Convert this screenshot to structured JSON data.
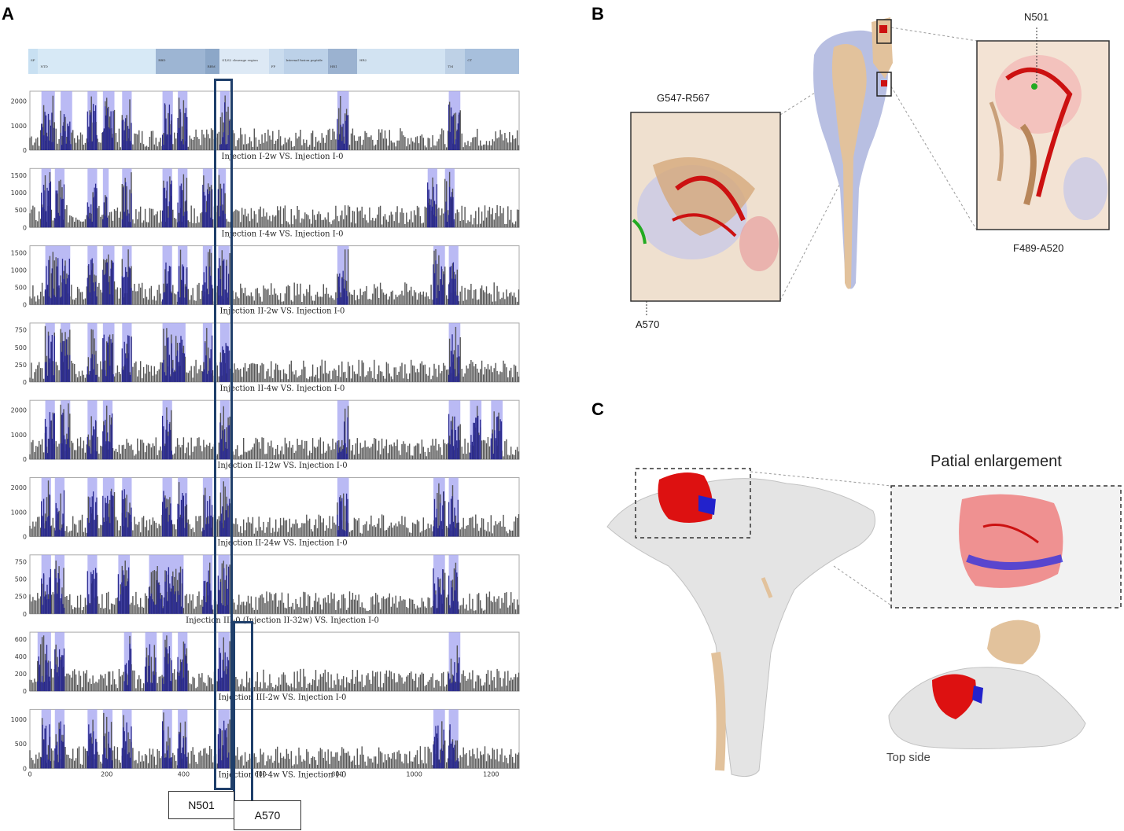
{
  "panels": {
    "a": "A",
    "b": "B",
    "c": "C"
  },
  "panel_a": {
    "domain_bar": {
      "segments": [
        {
          "label": "SP",
          "color": "#c8e0f2"
        },
        {
          "label": "NTD",
          "color": "#d7e9f6"
        },
        {
          "label": "RBD",
          "color": "#9db5d3"
        },
        {
          "label": "RBM",
          "color": "#8ca7c8"
        },
        {
          "label": "S1/S2 cleavage region",
          "color": "#dde9f5"
        },
        {
          "label": "FP",
          "color": "#cadcee"
        },
        {
          "label": "Internal fusion peptide",
          "color": "#bcd1e8"
        },
        {
          "label": "HR1",
          "color": "#9bb2d0"
        },
        {
          "label": "HR2",
          "color": "#d2e3f2"
        },
        {
          "label": "TM",
          "color": "#bed1e6"
        },
        {
          "label": "CT",
          "color": "#a7bfdc"
        }
      ]
    },
    "tracks": [
      {
        "title": "Injection I-2w VS. Injection I-0",
        "yticks": [
          "0",
          "1000",
          "2000"
        ]
      },
      {
        "title": "Injection I-4w VS. Injection I-0",
        "yticks": [
          "0",
          "500",
          "1000",
          "1500"
        ]
      },
      {
        "title": "Injection II-2w VS. Injection I-0",
        "yticks": [
          "0",
          "500",
          "1000",
          "1500"
        ]
      },
      {
        "title": "Injection II-4w VS. Injection I-0",
        "yticks": [
          "0",
          "250",
          "500",
          "750"
        ]
      },
      {
        "title": "Injection II-12w VS. Injection I-0",
        "yticks": [
          "0",
          "1000",
          "2000"
        ]
      },
      {
        "title": "Injection II-24w VS. Injection I-0",
        "yticks": [
          "0",
          "1000",
          "2000"
        ]
      },
      {
        "title": "Injection III-0 (Injection II-32w) VS. Injection I-0",
        "yticks": [
          "0",
          "250",
          "500",
          "750"
        ]
      },
      {
        "title": "Injection III-2w VS. Injection I-0",
        "yticks": [
          "0",
          "200",
          "400",
          "600"
        ]
      },
      {
        "title": "Injection III-4w VS. Injection I-0",
        "yticks": [
          "0",
          "500",
          "1000"
        ]
      }
    ],
    "xticks": [
      "0",
      "200",
      "400",
      "600",
      "800",
      "1000",
      "1200"
    ],
    "box_labels": {
      "n501": "N501",
      "a570": "A570"
    }
  },
  "panel_b": {
    "label_left_title": "G547-R567",
    "label_left_bottom": "A570",
    "label_right_top": "N501",
    "label_right_bottom": "F489-A520"
  },
  "panel_c": {
    "enlargement_title": "Patial enlargement",
    "top_side": "Top side"
  },
  "colors": {
    "highlight": "#9c9cf0",
    "bar_gray": "#555555",
    "bar_blue": "#2a2a8f",
    "box_navy": "#1f3f6b",
    "tan": "#e2c29c",
    "lavender": "#b8bfe2",
    "red": "#cc1111"
  }
}
